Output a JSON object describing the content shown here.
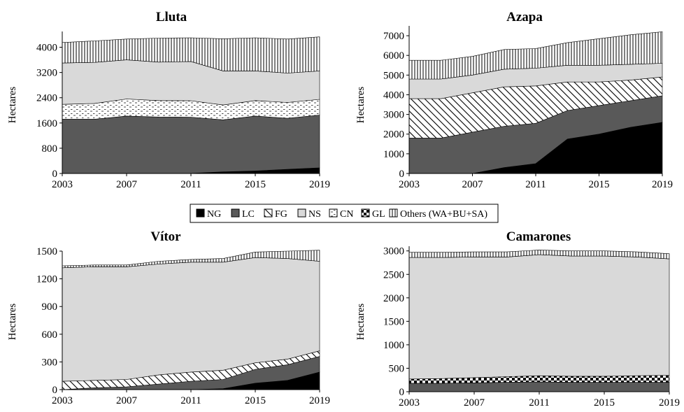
{
  "legend": {
    "items": [
      {
        "key": "NG",
        "label": "NG"
      },
      {
        "key": "LC",
        "label": "LC"
      },
      {
        "key": "FG",
        "label": "FG"
      },
      {
        "key": "NS",
        "label": "NS"
      },
      {
        "key": "CN",
        "label": "CN"
      },
      {
        "key": "GL",
        "label": "GL"
      },
      {
        "key": "OT",
        "label": "Others (WA+BU+SA)"
      }
    ]
  },
  "chart_data": [
    {
      "type": "area",
      "stacked": true,
      "title": "Lluta",
      "ylabel": "Hectares",
      "x": [
        2003,
        2005,
        2007,
        2009,
        2011,
        2013,
        2015,
        2017,
        2019
      ],
      "xticks": [
        "2003",
        "2007",
        "2011",
        "2015",
        "2019"
      ],
      "ylim": [
        0,
        4500
      ],
      "yticks": [
        0,
        800,
        1600,
        2400,
        3200,
        4000
      ],
      "series": [
        {
          "name": "NG",
          "values": [
            0,
            0,
            0,
            0,
            5,
            50,
            80,
            130,
            180
          ]
        },
        {
          "name": "LC",
          "values": [
            1720,
            1720,
            1820,
            1790,
            1780,
            1650,
            1740,
            1620,
            1670
          ]
        },
        {
          "name": "FG",
          "values": [
            0,
            0,
            0,
            0,
            0,
            0,
            0,
            0,
            0
          ]
        },
        {
          "name": "NS",
          "values": [
            0,
            0,
            0,
            0,
            0,
            0,
            0,
            0,
            0
          ]
        },
        {
          "name": "CN",
          "values": [
            470,
            500,
            540,
            520,
            520,
            470,
            490,
            500,
            500
          ]
        },
        {
          "name": "GL",
          "values": [
            0,
            0,
            0,
            0,
            0,
            0,
            0,
            0,
            0
          ]
        },
        {
          "name": "NS",
          "values": [
            1310,
            1300,
            1240,
            1220,
            1245,
            1080,
            940,
            930,
            900
          ]
        },
        {
          "name": "Others (WA+BU+SA)",
          "values": [
            650,
            680,
            660,
            760,
            750,
            1020,
            1050,
            1080,
            1080
          ]
        }
      ]
    },
    {
      "type": "area",
      "stacked": true,
      "title": "Azapa",
      "ylabel": "Hectares",
      "x": [
        2003,
        2005,
        2007,
        2009,
        2011,
        2013,
        2015,
        2017,
        2019
      ],
      "xticks": [
        "2003",
        "2007",
        "2011",
        "2015",
        "2019"
      ],
      "ylim": [
        0,
        7500
      ],
      "yticks": [
        0,
        1000,
        2000,
        3000,
        4000,
        5000,
        6000,
        7000
      ],
      "series": [
        {
          "name": "NG",
          "values": [
            0,
            0,
            0,
            300,
            500,
            1750,
            2000,
            2350,
            2600
          ]
        },
        {
          "name": "LC",
          "values": [
            1800,
            1800,
            2100,
            2100,
            2050,
            1450,
            1450,
            1350,
            1350
          ]
        },
        {
          "name": "FG",
          "values": [
            2000,
            2000,
            2000,
            2000,
            1900,
            1450,
            1200,
            1050,
            950
          ]
        },
        {
          "name": "NS",
          "values": [
            1000,
            1000,
            900,
            900,
            900,
            850,
            850,
            800,
            700
          ]
        },
        {
          "name": "CN",
          "values": [
            0,
            0,
            0,
            0,
            0,
            0,
            0,
            0,
            0
          ]
        },
        {
          "name": "GL",
          "values": [
            0,
            0,
            0,
            0,
            0,
            0,
            0,
            0,
            0
          ]
        },
        {
          "name": "Others (WA+BU+SA)",
          "values": [
            950,
            950,
            950,
            1000,
            1000,
            1150,
            1350,
            1500,
            1600
          ]
        }
      ]
    },
    {
      "type": "area",
      "stacked": true,
      "title": "Vítor",
      "ylabel": "Hectares",
      "x": [
        2003,
        2005,
        2007,
        2009,
        2011,
        2013,
        2015,
        2017,
        2019
      ],
      "xticks": [
        "2003",
        "2007",
        "2011",
        "2015",
        "2019"
      ],
      "ylim": [
        0,
        1500
      ],
      "yticks": [
        0,
        300,
        600,
        900,
        1200,
        1500
      ],
      "series": [
        {
          "name": "NG",
          "values": [
            0,
            0,
            0,
            0,
            0,
            10,
            70,
            100,
            190
          ]
        },
        {
          "name": "LC",
          "values": [
            0,
            20,
            30,
            60,
            90,
            100,
            150,
            170,
            170
          ]
        },
        {
          "name": "FG",
          "values": [
            90,
            80,
            80,
            100,
            100,
            100,
            70,
            60,
            60
          ]
        },
        {
          "name": "NS",
          "values": [
            1230,
            1230,
            1220,
            1200,
            1190,
            1170,
            1140,
            1090,
            970
          ]
        },
        {
          "name": "CN",
          "values": [
            0,
            0,
            0,
            0,
            0,
            0,
            0,
            0,
            0
          ]
        },
        {
          "name": "GL",
          "values": [
            0,
            0,
            0,
            0,
            0,
            0,
            0,
            0,
            0
          ]
        },
        {
          "name": "Others (WA+BU+SA)",
          "values": [
            20,
            20,
            20,
            30,
            30,
            40,
            60,
            80,
            120
          ]
        }
      ]
    },
    {
      "type": "area",
      "stacked": true,
      "title": "Camarones",
      "ylabel": "Hectares",
      "x": [
        2003,
        2005,
        2007,
        2009,
        2011,
        2013,
        2015,
        2017,
        2019
      ],
      "xticks": [
        "2003",
        "2007",
        "2011",
        "2015",
        "2019"
      ],
      "ylim": [
        0,
        3100
      ],
      "yticks": [
        0,
        500,
        1000,
        1500,
        2000,
        2500,
        3000
      ],
      "series": [
        {
          "name": "NG",
          "values": [
            0,
            0,
            0,
            0,
            0,
            0,
            0,
            0,
            0
          ]
        },
        {
          "name": "LC",
          "values": [
            180,
            180,
            190,
            200,
            210,
            200,
            200,
            200,
            200
          ]
        },
        {
          "name": "FG",
          "values": [
            0,
            0,
            0,
            0,
            0,
            0,
            0,
            0,
            0
          ]
        },
        {
          "name": "NS",
          "values": [
            0,
            0,
            0,
            0,
            0,
            0,
            0,
            0,
            0
          ]
        },
        {
          "name": "CN",
          "values": [
            0,
            0,
            0,
            0,
            0,
            0,
            0,
            0,
            0
          ]
        },
        {
          "name": "GL",
          "values": [
            90,
            100,
            110,
            120,
            130,
            130,
            130,
            140,
            150
          ]
        },
        {
          "name": "NS",
          "values": [
            2590,
            2580,
            2570,
            2550,
            2580,
            2560,
            2560,
            2530,
            2480
          ]
        },
        {
          "name": "Others (WA+BU+SA)",
          "values": [
            110,
            110,
            110,
            110,
            100,
            110,
            110,
            110,
            110
          ]
        }
      ]
    }
  ]
}
